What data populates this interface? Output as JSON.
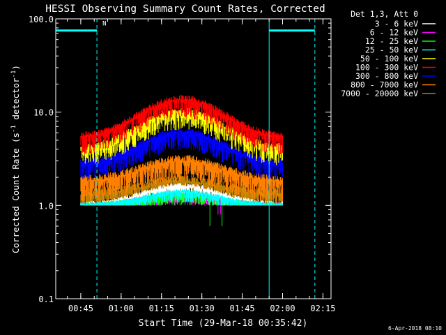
{
  "chart_data": {
    "type": "line",
    "title": "HESSI Observing Summary Count Rates, Corrected",
    "xlabel": "Start Time (29-Mar-18 00:35:42)",
    "ylabel_main": "Corrected Count Rate (s",
    "ylabel_sup1": "-1",
    "ylabel_mid": " detector",
    "ylabel_sup2": "-1",
    "ylabel_end": ")",
    "y_scale": "log",
    "ylim": [
      0.1,
      100.0
    ],
    "y_ticks": [
      "100.0",
      "10.0",
      "1.0",
      "0.1"
    ],
    "x_range_minutes": [
      "00:35:42",
      "02:18:00"
    ],
    "x_ticks": [
      "00:45",
      "01:00",
      "01:15",
      "01:30",
      "01:45",
      "02:00",
      "02:15"
    ],
    "legend_header": "Det 1,3, Att 0",
    "legend_position": "top-right, outside plot",
    "series": [
      {
        "name": "3 - 6 keV",
        "color": "#ffffff",
        "base": 1.0,
        "peak": 1.6,
        "spread": 0.8
      },
      {
        "name": "6 - 12 keV",
        "color": "#ff00ff",
        "base": 1.0,
        "peak": 1.3,
        "spread": 0.6
      },
      {
        "name": "12 - 25 keV",
        "color": "#00ff00",
        "base": 1.0,
        "peak": 1.3,
        "spread": 0.6
      },
      {
        "name": "25 - 50 keV",
        "color": "#00ffff",
        "base": 1.0,
        "peak": 1.4,
        "spread": 0.6
      },
      {
        "name": "50 - 100 keV",
        "color": "#ffff00",
        "base": 4.0,
        "peak": 10.0,
        "spread": 1.1
      },
      {
        "name": "100 - 300 keV",
        "color": "#ff0000",
        "base": 5.3,
        "peak": 13.5,
        "spread": 1.1
      },
      {
        "name": "300 - 800 keV",
        "color": "#0000ff",
        "base": 2.8,
        "peak": 6.0,
        "spread": 1.1
      },
      {
        "name": "800 - 7000 keV",
        "color": "#ff8000",
        "base": 1.8,
        "peak": 3.0,
        "spread": 1.4
      },
      {
        "name": "7000 - 20000 keV",
        "color": "#c08000",
        "base": 1.3,
        "peak": 1.8,
        "spread": 1.4
      }
    ],
    "data_span": [
      "00:45:00",
      "02:00:00"
    ],
    "flags": {
      "saa_color": "#00ffff",
      "night_marker": "N",
      "intervals": [
        [
          "00:35:42",
          "00:51:00"
        ],
        [
          "01:55:00",
          "02:12:00"
        ]
      ]
    },
    "timestamp": "6-Apr-2018 08:10"
  }
}
